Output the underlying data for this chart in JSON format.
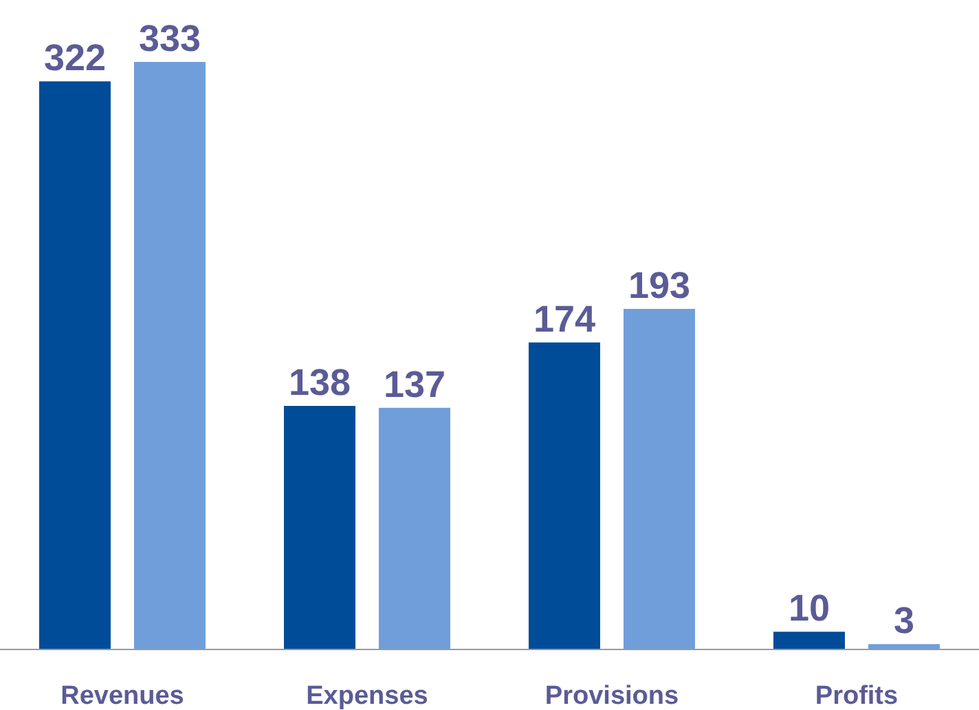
{
  "chart_data": {
    "type": "bar",
    "categories": [
      "Revenues",
      "Expenses",
      "Provisions",
      "Profits"
    ],
    "series": [
      {
        "color": "#004c99",
        "values": [
          322,
          138,
          174,
          10
        ]
      },
      {
        "color": "#6f9edb",
        "values": [
          333,
          137,
          193,
          3
        ]
      }
    ],
    "data_labels": true,
    "tick_labels": "x"
  }
}
